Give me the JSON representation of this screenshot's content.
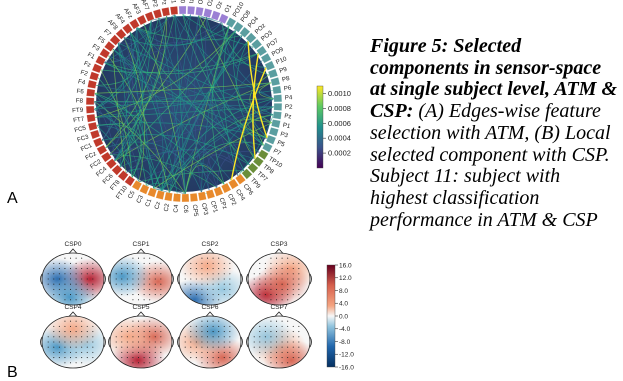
{
  "figure": {
    "caption_title": "Figure 5: Selected components in sensor-space at single subject level, ATM & CSP:",
    "caption_body": " (A) Edges-wise feature selection with ATM, (B) Local selected component with CSP. Subject 11: subject with highest classification performance in ATM & CSP",
    "panel_a_label": "A",
    "panel_b_label": "B"
  },
  "connectivity": {
    "channels": [
      "FP1",
      "FPz",
      "FP2",
      "AF7",
      "AF3",
      "AFz",
      "AF4",
      "AF8",
      "F7",
      "F5",
      "F3",
      "F1",
      "Fz",
      "F2",
      "F4",
      "F6",
      "F8",
      "FT9",
      "FT7",
      "FC5",
      "FC3",
      "FC1",
      "FCz",
      "FC2",
      "FC4",
      "FC6",
      "FT8",
      "FT10",
      "C5",
      "C3",
      "C1",
      "Cz",
      "C2",
      "C4",
      "C6",
      "CP5",
      "CP3",
      "CP1",
      "CPz",
      "CP2",
      "CP4",
      "CP6",
      "TP9",
      "TP7",
      "TP8",
      "TP10",
      "P7",
      "P5",
      "P3",
      "P1",
      "Pz",
      "P2",
      "P4",
      "P6",
      "P8",
      "P9",
      "P10",
      "PO9",
      "PO7",
      "PO3",
      "POz",
      "PO4",
      "PO8",
      "PO10",
      "O1",
      "Oz",
      "O2",
      "O9",
      "Iz",
      "O10"
    ],
    "visible_labels": [
      "FP1",
      "FPz",
      "FP2",
      "AF7",
      "AF3",
      "AFz",
      "AF4",
      "AF8",
      "F7",
      "F5",
      "F3",
      "F1",
      "Fz",
      "F2",
      "F4",
      "F6",
      "F8",
      "FT9",
      "FT7",
      "FC5",
      "FC3",
      "FC1",
      "FCz",
      "FC2",
      "FC4",
      "FC6",
      "FT8",
      "FT10",
      "C5",
      "C3",
      "C1",
      "Cz",
      "C2",
      "C4",
      "C6",
      "CP5",
      "CP3",
      "CP1",
      "CPz",
      "CP2",
      "CP4",
      "CP6",
      "TP9",
      "TP7",
      "TP8",
      "TP10",
      "P7",
      "P5",
      "P3",
      "P1",
      "Pz",
      "P2",
      "P4",
      "P6",
      "P8",
      "P9",
      "P10",
      "PO9",
      "PO7",
      "PO3",
      "POz",
      "PO4",
      "PO8",
      "PO10",
      "O1",
      "Oz",
      "O2",
      "O9",
      "Iz",
      "O10"
    ],
    "group_colors": {
      "frontal": "#c0392b",
      "central": "#e8892b",
      "temporal": "#6b8e3a",
      "parietal": "#5a9ea0",
      "occipital": "#9b7fd4"
    },
    "colorbar": {
      "ticks": [
        "0.0002",
        "0.0004",
        "0.0006",
        "0.0008",
        "0.0010"
      ],
      "min": 0,
      "max": 0.0011,
      "cmap": "viridis"
    },
    "background": "#2b3f6e"
  },
  "csp": {
    "maps": [
      {
        "title": "CSP0"
      },
      {
        "title": "CSP1"
      },
      {
        "title": "CSP2"
      },
      {
        "title": "CSP3"
      },
      {
        "title": "CSP4"
      },
      {
        "title": "CSP5"
      },
      {
        "title": "CSP6"
      },
      {
        "title": "CSP7"
      }
    ],
    "colorbar": {
      "ticks": [
        "16.0",
        "12.0",
        "8.0",
        "4.0",
        "0.0",
        "-4.0",
        "-8.0",
        "-12.0",
        "-16.0"
      ],
      "min": -16,
      "max": 16,
      "cmap": "RdBu_r"
    }
  }
}
